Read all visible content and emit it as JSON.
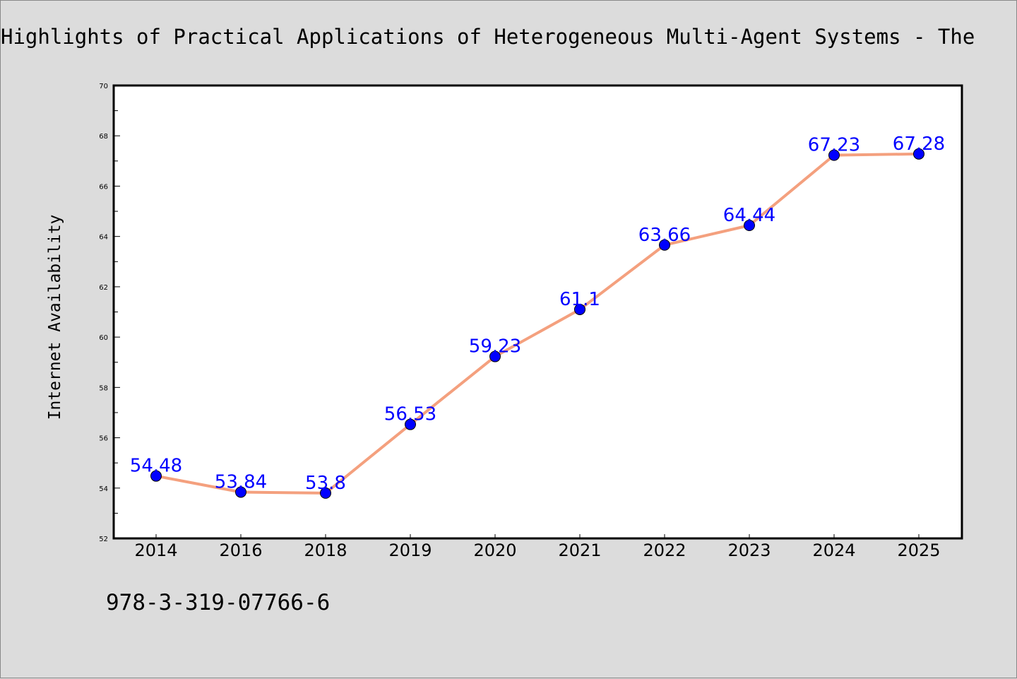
{
  "chart_data": {
    "type": "line",
    "title": "Highlights of Practical Applications of Heterogeneous Multi-Agent Systems - The",
    "xlabel": "",
    "ylabel": "Internet Availability",
    "categories": [
      "2014",
      "2016",
      "2018",
      "2019",
      "2020",
      "2021",
      "2022",
      "2023",
      "2024",
      "2025"
    ],
    "series": [
      {
        "values": [
          54.48,
          53.84,
          53.8,
          56.53,
          59.23,
          61.1,
          63.66,
          64.44,
          67.23,
          67.28
        ],
        "data_labels": [
          "54.48",
          "53.84",
          "53.8",
          "56.53",
          "59.23",
          "61.1",
          "63.66",
          "64.44",
          "67.23",
          "67.28"
        ]
      }
    ],
    "ylim": [
      52,
      70
    ],
    "yticks": [
      52,
      54,
      56,
      58,
      60,
      62,
      64,
      66,
      68,
      70
    ],
    "grid": false,
    "legend": "none",
    "line_color": "#f4a07e",
    "marker_color": "#0000ff",
    "label_color": "#0000ff"
  },
  "annotation": "978-3-319-07766-6"
}
